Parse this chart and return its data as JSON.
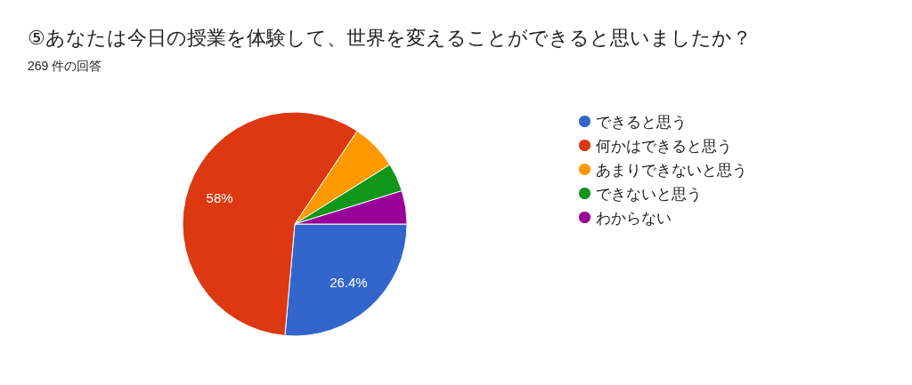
{
  "chart_data": {
    "type": "pie",
    "title": "⑤あなたは今日の授業を体験して、世界を変えることができると思いましたか？",
    "subtitle": "269 件の回答",
    "categories": [
      "できると思う",
      "何かはできると思う",
      "あまりできないと思う",
      "できないと思う",
      "わからない"
    ],
    "values": [
      26.4,
      58,
      6.7,
      4.1,
      4.8
    ],
    "colors": [
      "#3366cc",
      "#dc3912",
      "#ff9900",
      "#109618",
      "#990099"
    ],
    "value_labels": [
      "26.4%",
      "58%",
      null,
      null,
      null
    ],
    "legend": "right"
  }
}
